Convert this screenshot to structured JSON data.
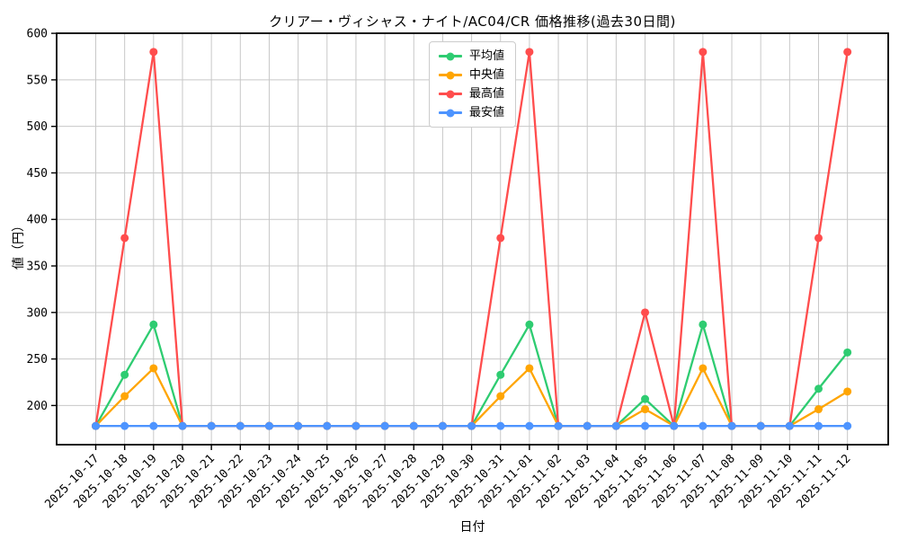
{
  "chart_data": {
    "type": "line",
    "title": "クリアー・ヴィシャス・ナイト/AC04/CR 価格推移(過去30日間)",
    "xlabel": "日付",
    "ylabel": "値（円）",
    "x": [
      "2025-10-17",
      "2025-10-18",
      "2025-10-19",
      "2025-10-20",
      "2025-10-21",
      "2025-10-22",
      "2025-10-23",
      "2025-10-24",
      "2025-10-25",
      "2025-10-26",
      "2025-10-27",
      "2025-10-28",
      "2025-10-29",
      "2025-10-30",
      "2025-10-31",
      "2025-11-01",
      "2025-11-02",
      "2025-11-03",
      "2025-11-04",
      "2025-11-05",
      "2025-11-06",
      "2025-11-07",
      "2025-11-08",
      "2025-11-09",
      "2025-11-10",
      "2025-11-11",
      "2025-11-12"
    ],
    "series": [
      {
        "key": "average",
        "name": "平均値",
        "color": "#2ecc71",
        "values": [
          178,
          233,
          287,
          178,
          178,
          178,
          178,
          178,
          178,
          178,
          178,
          178,
          178,
          178,
          233,
          287,
          178,
          178,
          178,
          207,
          178,
          287,
          178,
          178,
          178,
          218,
          257
        ]
      },
      {
        "key": "median",
        "name": "中央値",
        "color": "#ffa502",
        "values": [
          178,
          210,
          240,
          178,
          178,
          178,
          178,
          178,
          178,
          178,
          178,
          178,
          178,
          178,
          210,
          240,
          178,
          178,
          178,
          196,
          178,
          240,
          178,
          178,
          178,
          196,
          215
        ]
      },
      {
        "key": "max",
        "name": "最高値",
        "color": "#ff4d4d",
        "values": [
          178,
          380,
          580,
          178,
          178,
          178,
          178,
          178,
          178,
          178,
          178,
          178,
          178,
          178,
          380,
          580,
          178,
          178,
          178,
          300,
          178,
          580,
          178,
          178,
          178,
          380,
          580
        ]
      },
      {
        "key": "min",
        "name": "最安値",
        "color": "#4d94ff",
        "values": [
          178,
          178,
          178,
          178,
          178,
          178,
          178,
          178,
          178,
          178,
          178,
          178,
          178,
          178,
          178,
          178,
          178,
          178,
          178,
          178,
          178,
          178,
          178,
          178,
          178,
          178,
          178
        ]
      }
    ],
    "yticks": [
      200,
      250,
      300,
      350,
      400,
      450,
      500,
      550,
      600
    ],
    "ylim": [
      157.9,
      600.1
    ],
    "grid": true,
    "legend_position": "upper center",
    "grid_color": "#c8c8c8",
    "axis_color": "#000000"
  }
}
